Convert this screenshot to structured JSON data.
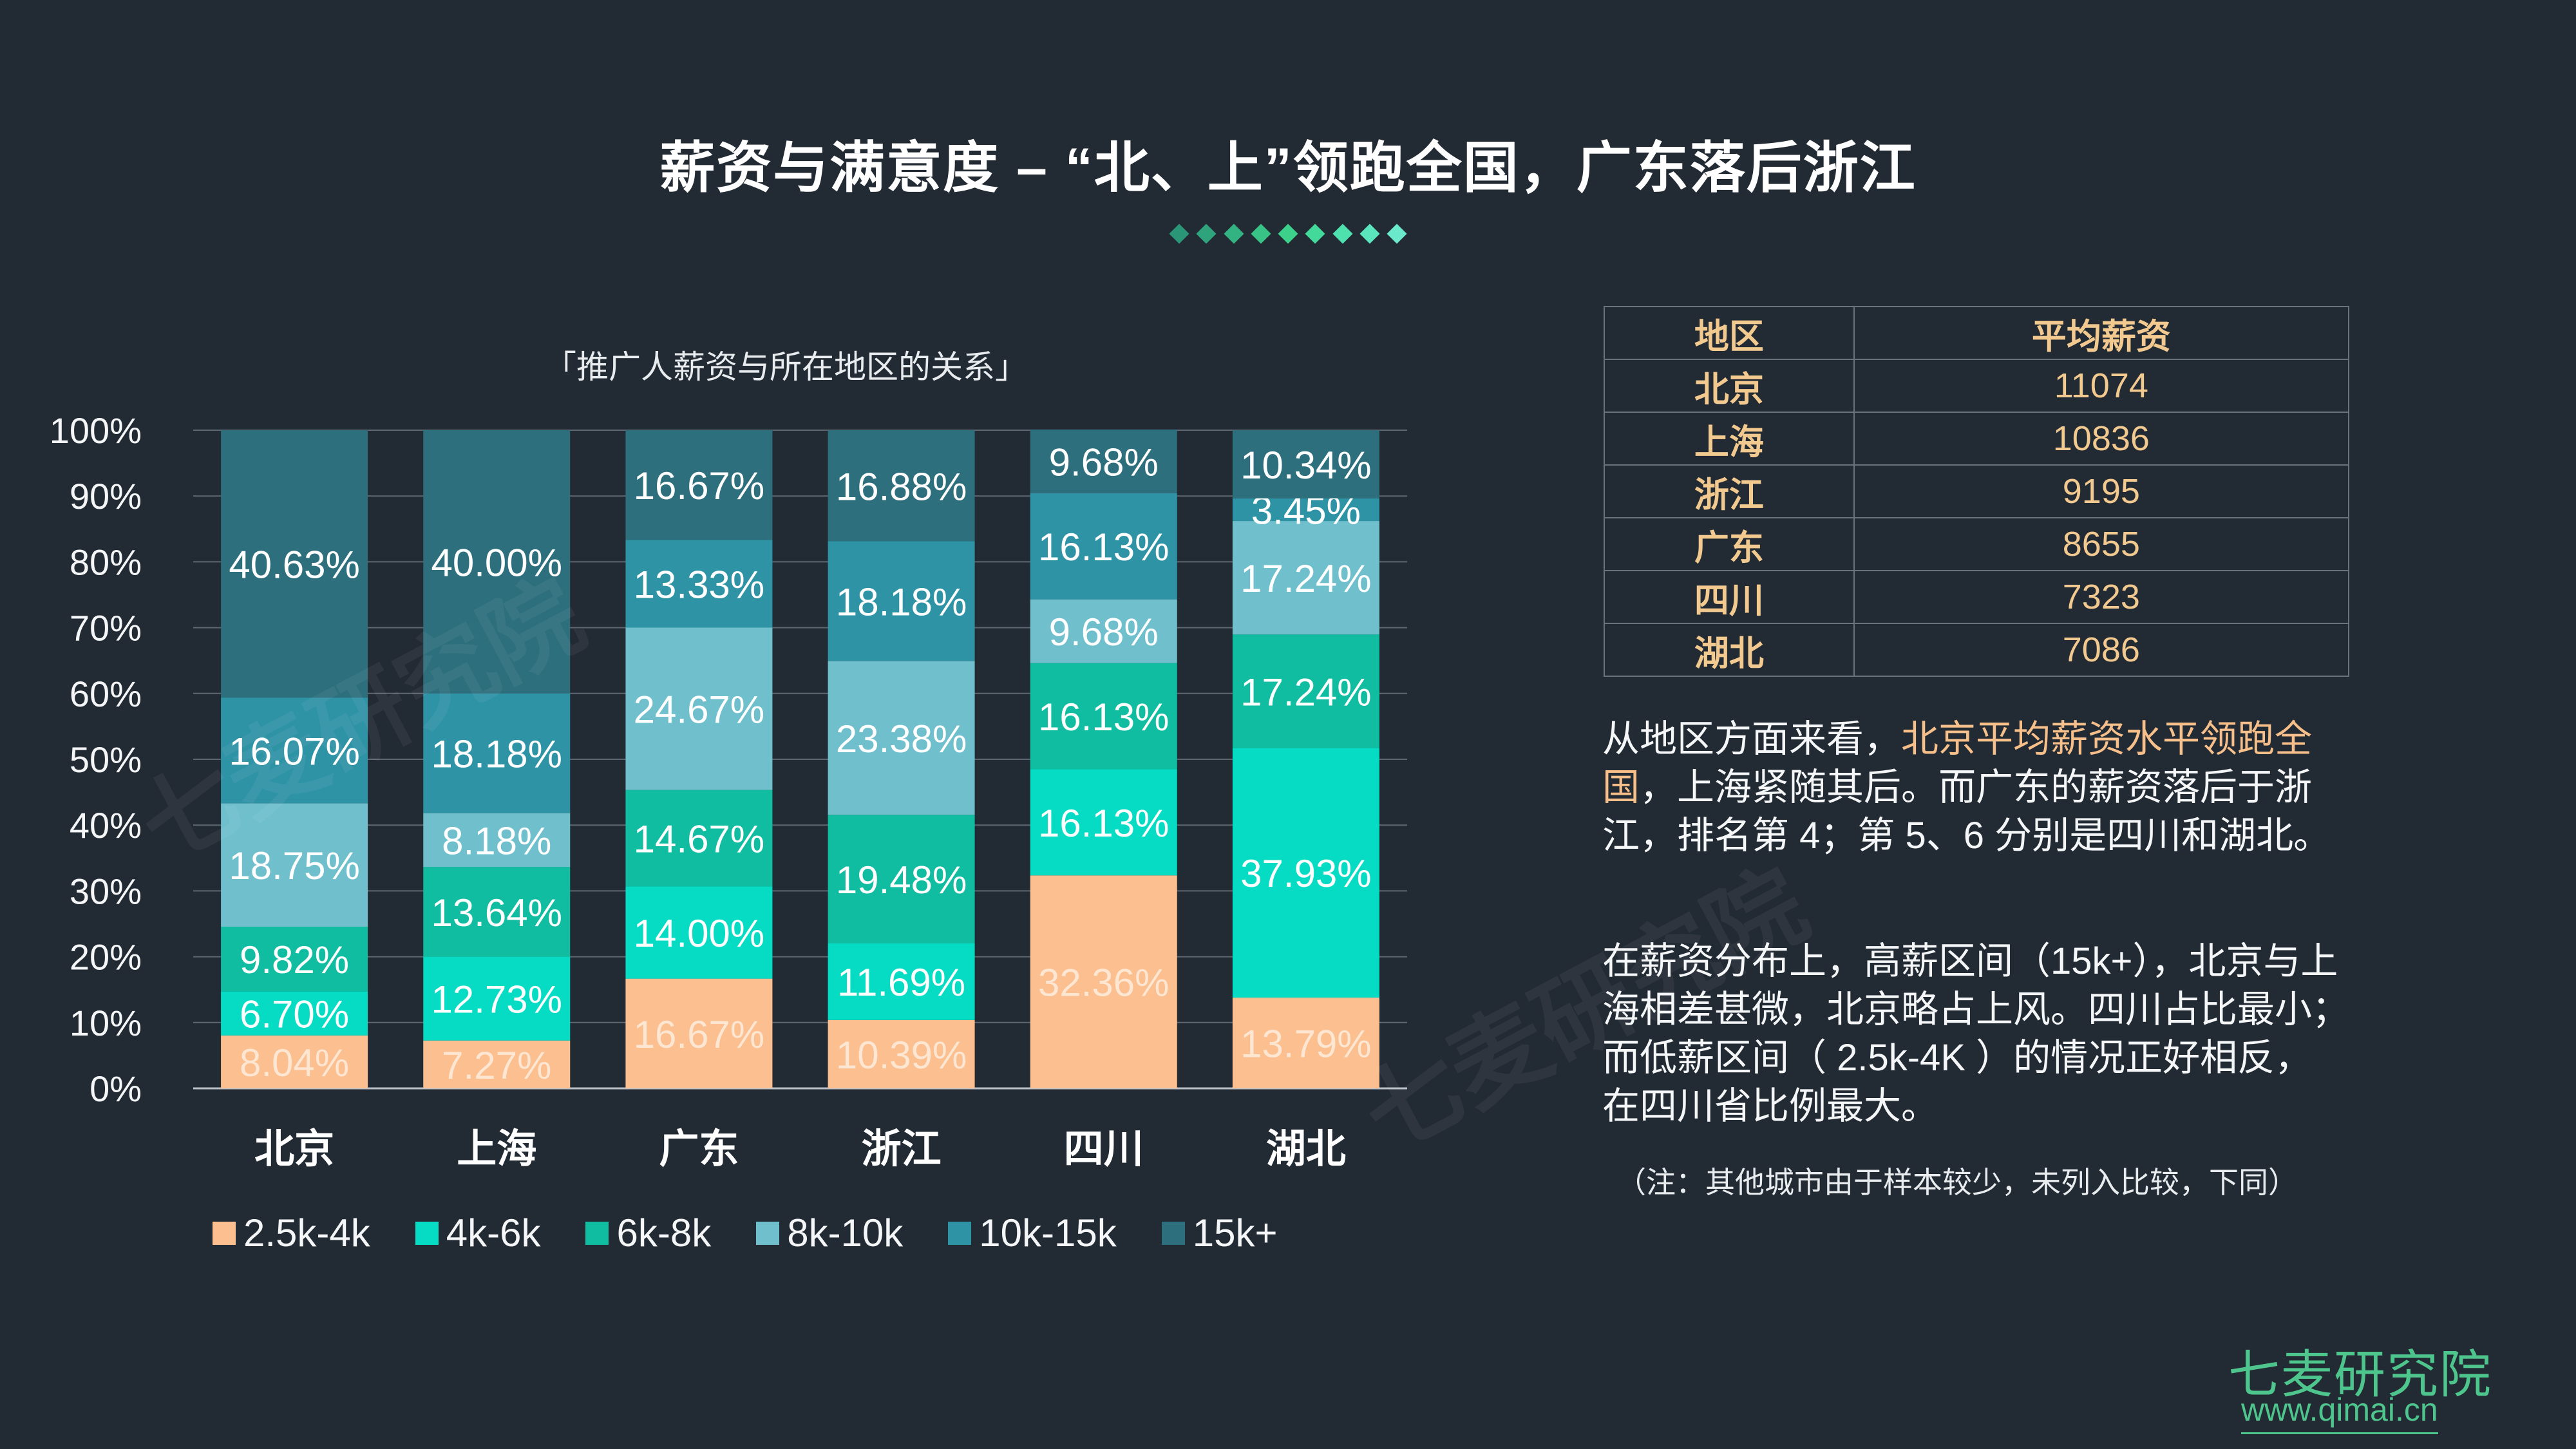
{
  "header": {
    "title": "薪资与满意度 – “北、上”领跑全国，广东落后浙江"
  },
  "colors": {
    "divider": [
      "#2b9577",
      "#2fa47c",
      "#33b381",
      "#38c285",
      "#3cd08b",
      "#43d99b",
      "#4ee0ad",
      "#5be5bd",
      "#6aeacb"
    ],
    "segments": [
      "#fbbf90",
      "#06dcc4",
      "#10bda1",
      "#6fbfcc",
      "#2f93a6",
      "#2d6f7d"
    ]
  },
  "chart_data": {
    "type": "stacked-bar",
    "title": "「推广人薪资与所在地区的关系」",
    "categories": [
      "北京",
      "上海",
      "广东",
      "浙江",
      "四川",
      "湖北"
    ],
    "ylim": [
      0,
      100
    ],
    "yticks": [
      "0%",
      "10%",
      "20%",
      "30%",
      "40%",
      "50%",
      "60%",
      "70%",
      "80%",
      "90%",
      "100%"
    ],
    "series": [
      {
        "name": "2.5k-4k",
        "values": [
          8.04,
          7.27,
          16.67,
          10.39,
          32.36,
          13.79
        ],
        "labels": [
          "8.04%",
          "7.27%",
          "16.67%",
          "10.39%",
          "32.36%",
          "13.79%"
        ]
      },
      {
        "name": "4k-6k",
        "values": [
          6.7,
          12.73,
          14.0,
          11.69,
          16.13,
          37.93
        ],
        "labels": [
          "6.70%",
          "12.73%",
          "14.00%",
          "11.69%",
          "16.13%",
          "37.93%"
        ]
      },
      {
        "name": "6k-8k",
        "values": [
          9.82,
          13.64,
          14.67,
          19.48,
          16.13,
          17.24
        ],
        "labels": [
          "9.82%",
          "13.64%",
          "14.67%",
          "19.48%",
          "16.13%",
          "17.24%"
        ]
      },
      {
        "name": "8k-10k",
        "values": [
          18.75,
          8.18,
          24.67,
          23.38,
          9.68,
          17.24
        ],
        "labels": [
          "18.75%",
          "8.18%",
          "24.67%",
          "23.38%",
          "9.68%",
          "17.24%"
        ]
      },
      {
        "name": "10k-15k",
        "values": [
          16.07,
          18.18,
          13.33,
          18.18,
          16.13,
          3.45
        ],
        "labels": [
          "16.07%",
          "18.18%",
          "13.33%",
          "18.18%",
          "16.13%",
          "3.45%"
        ]
      },
      {
        "name": "15k+",
        "values": [
          40.63,
          40.0,
          16.67,
          16.88,
          9.68,
          10.34
        ],
        "labels": [
          "40.63%",
          "40.00%",
          "16.67%",
          "16.88%",
          "9.68%",
          "10.34%"
        ]
      }
    ]
  },
  "table": {
    "headers": [
      "地区",
      "平均薪资"
    ],
    "rows": [
      [
        "北京",
        "11074"
      ],
      [
        "上海",
        "10836"
      ],
      [
        "浙江",
        "9195"
      ],
      [
        "广东",
        "8655"
      ],
      [
        "四川",
        "7323"
      ],
      [
        "湖北",
        "7086"
      ]
    ]
  },
  "text": {
    "p1_a": "从地区方面来看，",
    "p1_hl": "北京平均薪资水平领跑全国",
    "p1_b": "，上海紧随其后。而广东的薪资落后于浙江，排名第 4；第 5、6 分别是四川和湖北。",
    "p2": "在薪资分布上，高薪区间（15k+），北京与上海相差甚微，北京略占上风。四川占比最小；而低薪区间（ 2.5k-4K ）的情况正好相反，在四川省比例最大。",
    "note": "（注：其他城市由于样本较少，未列入比较，下同）"
  },
  "brand": {
    "name": "七麦研究院",
    "url": "www.qimai.cn",
    "watermark": "七麦研究院"
  }
}
